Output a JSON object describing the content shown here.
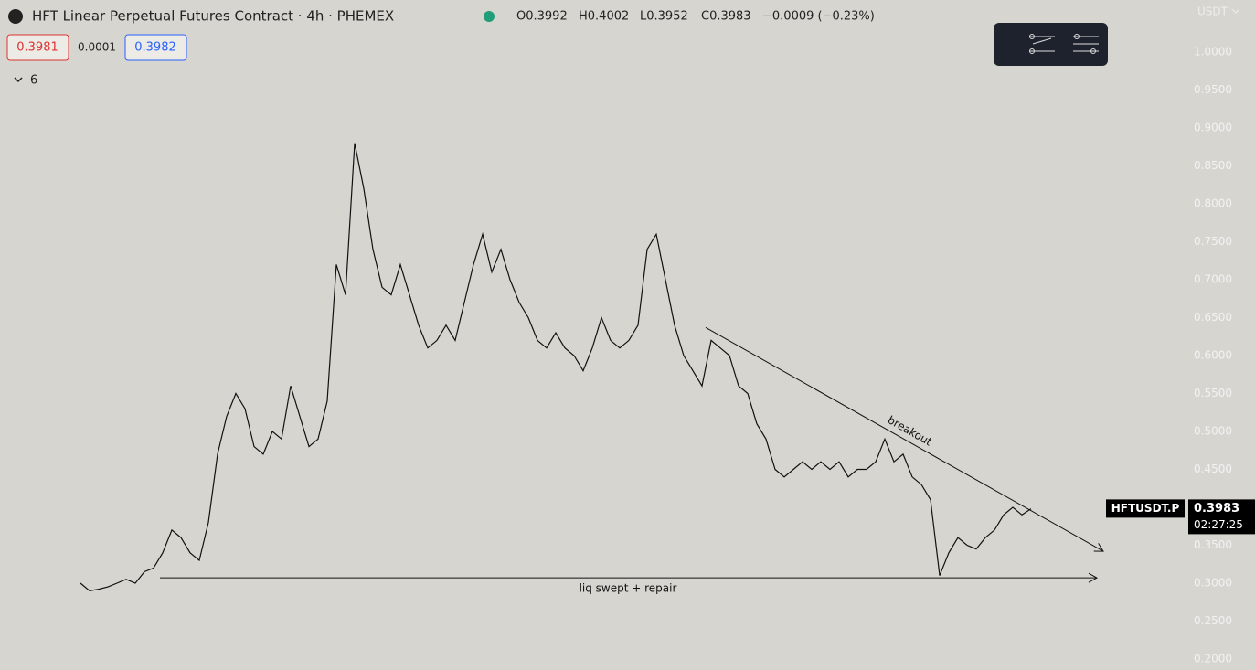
{
  "chart_data": {
    "type": "line",
    "title": "HFT Linear Perpetual Futures Contract · 4h · PHEMEX",
    "ohlc": [
      "O0.3992",
      "H0.4002",
      "L0.3952",
      "C0.3983",
      "−0.0009 (−0.23%)"
    ],
    "bid": "0.3981",
    "spread": "0.0001",
    "ask": "0.3982",
    "indicators_count": "6",
    "currency": "USDT",
    "symbol": "HFTUSDT.P",
    "last_price": 0.3983,
    "countdown": "02:27:25",
    "color": "#111111",
    "values": [
      0.3,
      0.29,
      0.292,
      0.295,
      0.3,
      0.305,
      0.3,
      0.315,
      0.32,
      0.34,
      0.37,
      0.36,
      0.34,
      0.33,
      0.38,
      0.47,
      0.52,
      0.55,
      0.53,
      0.48,
      0.47,
      0.5,
      0.49,
      0.56,
      0.52,
      0.48,
      0.49,
      0.54,
      0.72,
      0.68,
      0.88,
      0.82,
      0.74,
      0.69,
      0.68,
      0.72,
      0.68,
      0.64,
      0.61,
      0.62,
      0.64,
      0.62,
      0.67,
      0.72,
      0.76,
      0.71,
      0.74,
      0.7,
      0.67,
      0.65,
      0.62,
      0.61,
      0.63,
      0.61,
      0.6,
      0.58,
      0.61,
      0.65,
      0.62,
      0.61,
      0.62,
      0.64,
      0.74,
      0.76,
      0.7,
      0.64,
      0.6,
      0.58,
      0.56,
      0.62,
      0.61,
      0.6,
      0.56,
      0.55,
      0.51,
      0.49,
      0.45,
      0.44,
      0.45,
      0.46,
      0.45,
      0.46,
      0.45,
      0.46,
      0.44,
      0.45,
      0.45,
      0.46,
      0.49,
      0.46,
      0.47,
      0.44,
      0.43,
      0.41,
      0.31,
      0.34,
      0.36,
      0.35,
      0.345,
      0.36,
      0.37,
      0.39,
      0.4,
      0.39,
      0.398
    ],
    "annotations": [
      {
        "label": "liq swept + repair",
        "from": 0.307,
        "to": 0.307
      },
      {
        "label": "breakout",
        "from": 0.637,
        "to": 0.342
      }
    ],
    "ylim": [
      0.1855,
      1.0687
    ],
    "yticks": [
      {
        "value": 0.2,
        "label": "0.2000"
      },
      {
        "value": 0.25,
        "label": "0.2500"
      },
      {
        "value": 0.3,
        "label": "0.3000"
      },
      {
        "value": 0.35,
        "label": "0.3500"
      },
      {
        "value": 0.4,
        "label": "0.4000"
      },
      {
        "value": 0.45,
        "label": "0.4500"
      },
      {
        "value": 0.5,
        "label": "0.5000"
      },
      {
        "value": 0.55,
        "label": "0.5500"
      },
      {
        "value": 0.6,
        "label": "0.6000"
      },
      {
        "value": 0.65,
        "label": "0.6500"
      },
      {
        "value": 0.7,
        "label": "0.7000"
      },
      {
        "value": 0.75,
        "label": "0.7500"
      },
      {
        "value": 0.8,
        "label": "0.8000"
      },
      {
        "value": 0.85,
        "label": "0.8500"
      },
      {
        "value": 0.9,
        "label": "0.9000"
      },
      {
        "value": 0.95,
        "label": "0.9500"
      },
      {
        "value": 1.0,
        "label": "1.0000"
      }
    ]
  }
}
